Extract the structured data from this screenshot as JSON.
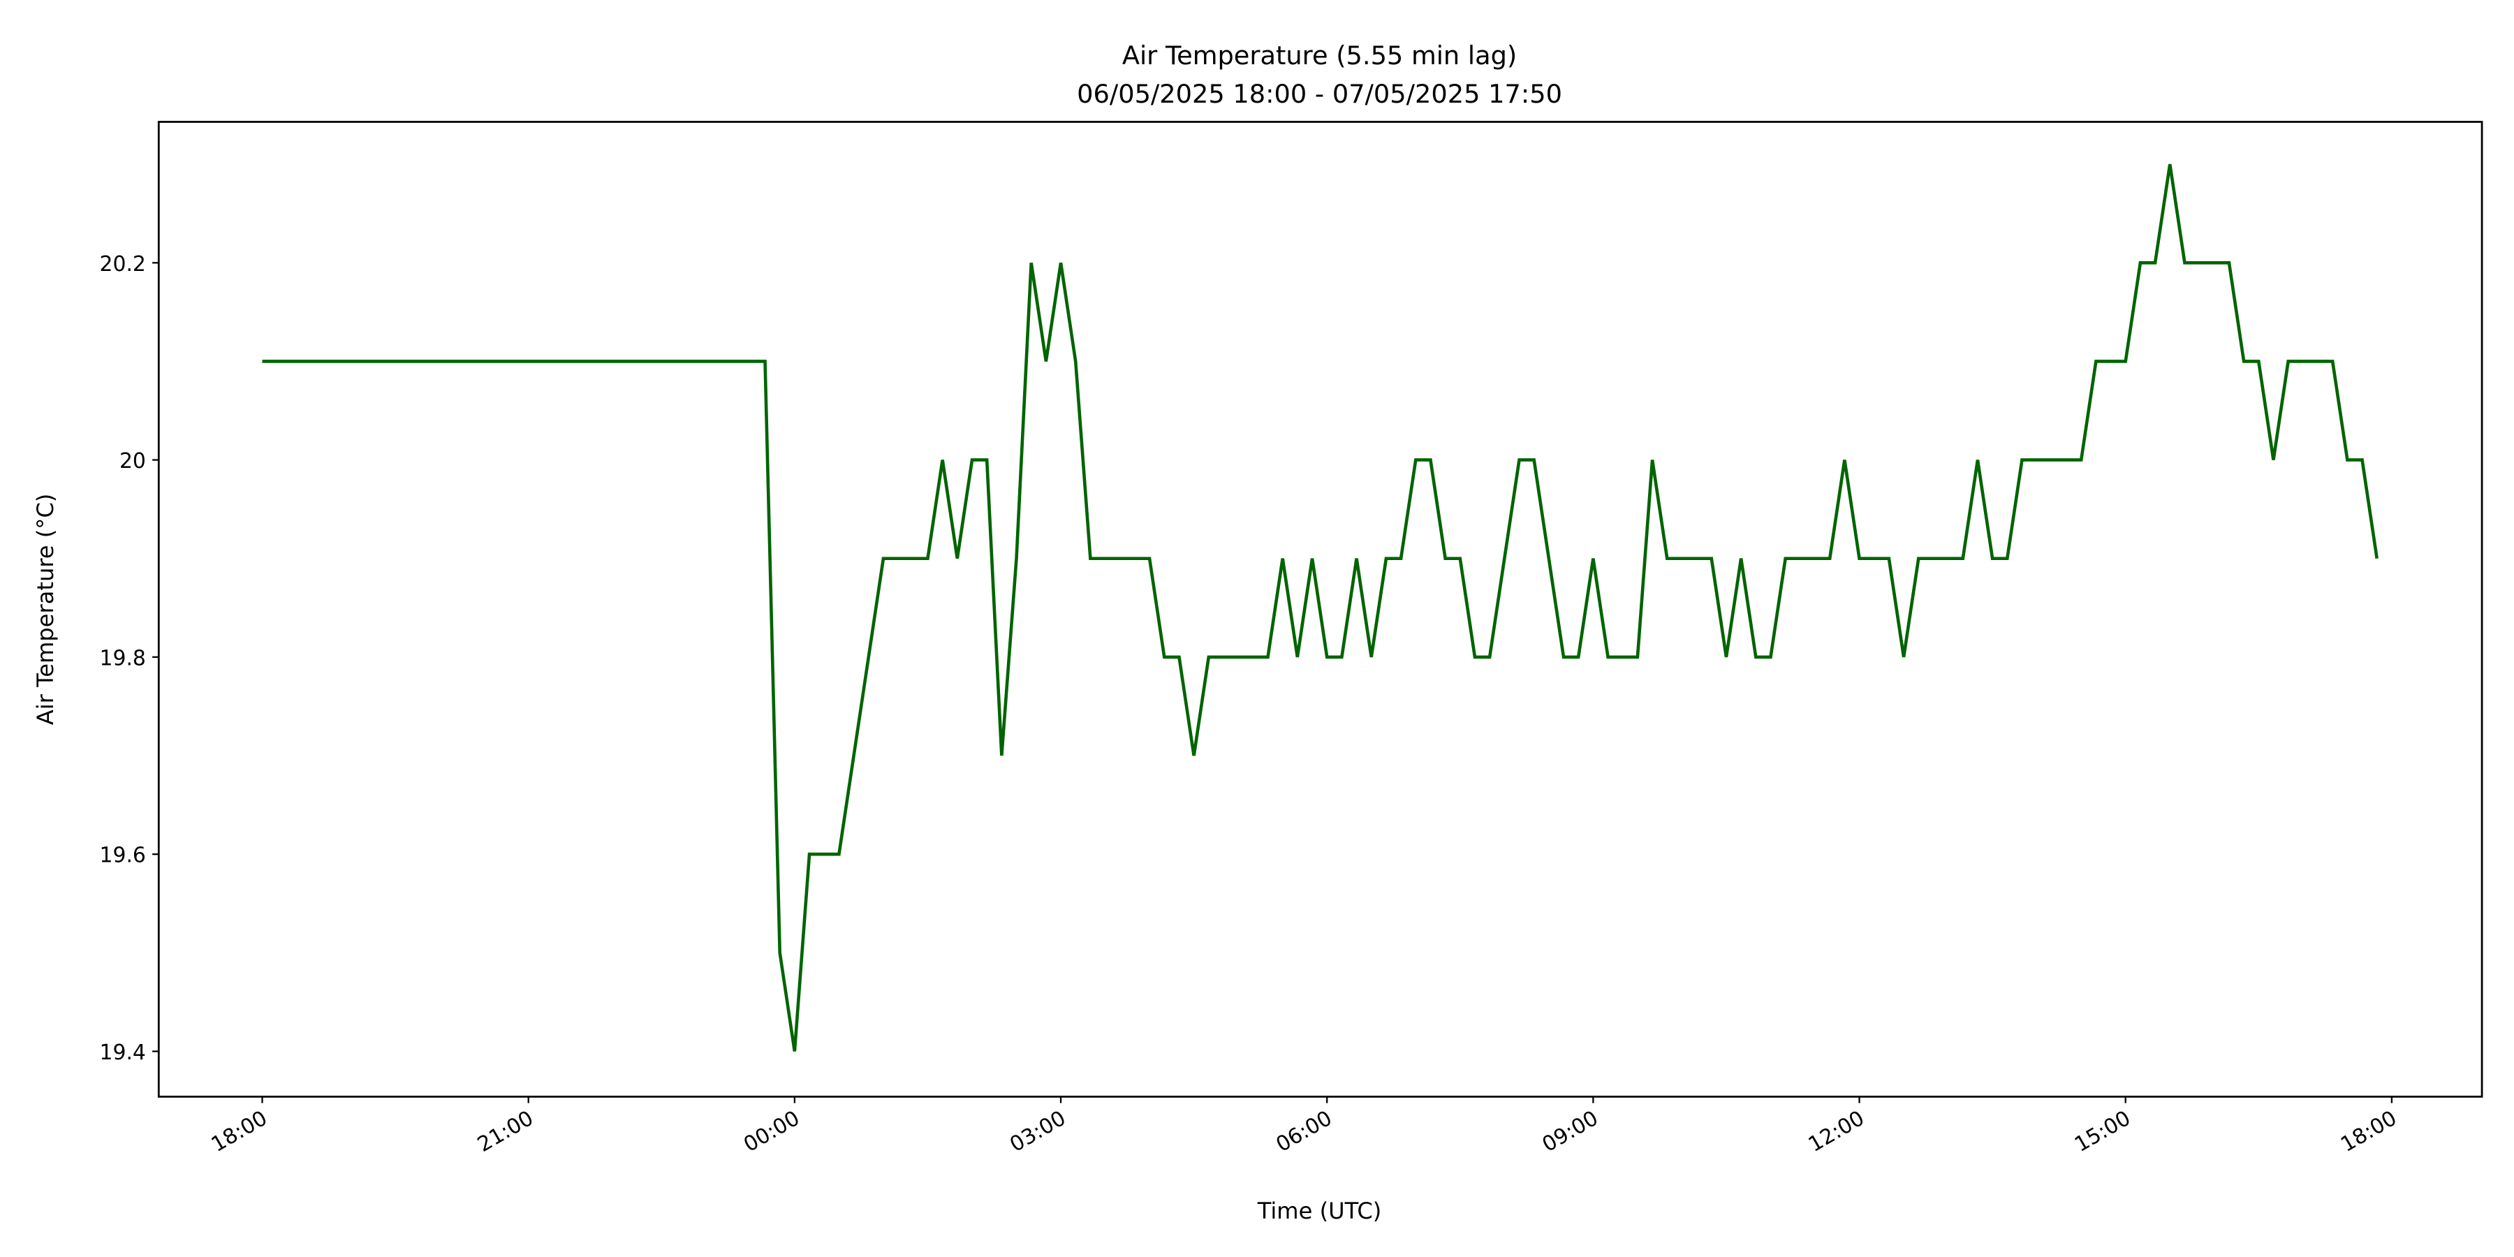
{
  "chart_data": {
    "type": "line",
    "title": "Air Temperature (5.55 min lag)",
    "subtitle": "06/05/2025 18:00 - 07/05/2025 17:50",
    "x_label": "Time (UTC)",
    "y_label": "Air Temperature (°C)",
    "color": "#006400",
    "x": [
      0,
      340,
      350,
      360,
      370,
      390,
      420,
      450,
      460,
      470,
      480,
      490,
      500,
      510,
      520,
      530,
      540,
      550,
      560,
      600,
      610,
      620,
      630,
      640,
      680,
      690,
      700,
      710,
      720,
      730,
      740,
      750,
      760,
      770,
      780,
      790,
      800,
      810,
      820,
      830,
      850,
      860,
      880,
      890,
      900,
      910,
      930,
      940,
      950,
      980,
      990,
      1000,
      1010,
      1020,
      1030,
      1060,
      1070,
      1080,
      1100,
      1110,
      1120,
      1150,
      1160,
      1170,
      1180,
      1190,
      1230,
      1240,
      1260,
      1270,
      1280,
      1290,
      1300,
      1330,
      1340,
      1350,
      1360,
      1370,
      1400,
      1410,
      1420,
      1430
    ],
    "values": [
      20.1,
      20.1,
      19.5,
      19.4,
      19.6,
      19.6,
      19.9,
      19.9,
      20.0,
      19.9,
      20.0,
      20.0,
      19.7,
      19.9,
      20.2,
      20.1,
      20.2,
      20.1,
      19.9,
      19.9,
      19.8,
      19.8,
      19.7,
      19.8,
      19.8,
      19.9,
      19.8,
      19.9,
      19.8,
      19.8,
      19.9,
      19.8,
      19.9,
      19.9,
      20.0,
      20.0,
      19.9,
      19.9,
      19.8,
      19.8,
      20.0,
      20.0,
      19.8,
      19.8,
      19.9,
      19.8,
      19.8,
      20.0,
      19.9,
      19.9,
      19.8,
      19.9,
      19.8,
      19.8,
      19.9,
      19.9,
      20.0,
      19.9,
      19.9,
      19.8,
      19.9,
      19.9,
      20.0,
      19.9,
      19.9,
      20.0,
      20.0,
      20.1,
      20.1,
      20.2,
      20.2,
      20.3,
      20.2,
      20.2,
      20.1,
      20.1,
      20.0,
      20.1,
      20.1,
      20.0,
      20.0,
      19.9
    ],
    "xlim": [
      -70,
      1501
    ],
    "xticks": [
      {
        "value": 0,
        "label": "18:00"
      },
      {
        "value": 180,
        "label": "21:00"
      },
      {
        "value": 360,
        "label": "00:00"
      },
      {
        "value": 540,
        "label": "03:00"
      },
      {
        "value": 720,
        "label": "06:00"
      },
      {
        "value": 900,
        "label": "09:00"
      },
      {
        "value": 1080,
        "label": "12:00"
      },
      {
        "value": 1260,
        "label": "15:00"
      },
      {
        "value": 1440,
        "label": "18:00"
      }
    ],
    "ylim": [
      19.354,
      20.343
    ],
    "yticks": [
      19.4,
      19.6,
      19.8,
      20.0,
      20.2
    ],
    "grid": false
  }
}
